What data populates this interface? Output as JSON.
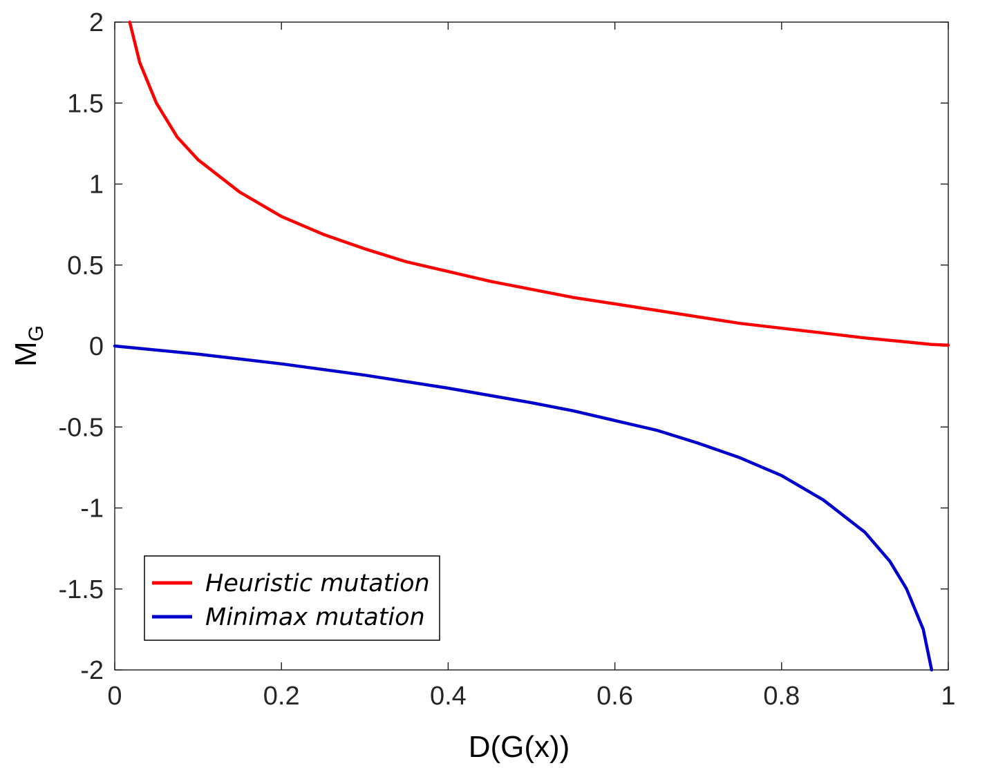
{
  "chart_data": {
    "type": "line",
    "title": "",
    "xlabel": "D(G(x))",
    "ylabel_main": "M",
    "ylabel_sub": "G",
    "xlim": [
      0,
      1
    ],
    "ylim": [
      -2,
      2
    ],
    "xticks": [
      0,
      0.2,
      0.4,
      0.6,
      0.8,
      1
    ],
    "xtick_labels": [
      "0",
      "0.2",
      "0.4",
      "0.6",
      "0.8",
      "1"
    ],
    "yticks": [
      2,
      1.5,
      1,
      0.5,
      0,
      -0.5,
      -1,
      -1.5,
      -2
    ],
    "ytick_labels": [
      "2",
      "1.5",
      "1",
      "0.5",
      "0",
      "-0.5",
      "-1",
      "-1.5",
      "-2"
    ],
    "grid": false,
    "legend_position": "bottom-left",
    "series": [
      {
        "name": "Heuristic mutation",
        "color": "#ff0000",
        "x": [
          0.018,
          0.03,
          0.05,
          0.075,
          0.1,
          0.15,
          0.2,
          0.25,
          0.3,
          0.35,
          0.4,
          0.45,
          0.5,
          0.55,
          0.6,
          0.65,
          0.7,
          0.75,
          0.8,
          0.85,
          0.9,
          0.95,
          0.98,
          1.0
        ],
        "y": [
          2.0,
          1.75,
          1.5,
          1.29,
          1.15,
          0.95,
          0.8,
          0.69,
          0.6,
          0.52,
          0.46,
          0.4,
          0.35,
          0.3,
          0.26,
          0.22,
          0.18,
          0.14,
          0.11,
          0.08,
          0.05,
          0.025,
          0.01,
          0.005
        ]
      },
      {
        "name": "Minimax mutation",
        "color": "#0000cc",
        "x": [
          0.0,
          0.1,
          0.2,
          0.3,
          0.4,
          0.5,
          0.55,
          0.6,
          0.65,
          0.7,
          0.75,
          0.8,
          0.85,
          0.9,
          0.93,
          0.95,
          0.97,
          0.98
        ],
        "y": [
          0.0,
          -0.05,
          -0.11,
          -0.18,
          -0.26,
          -0.35,
          -0.4,
          -0.46,
          -0.52,
          -0.6,
          -0.69,
          -0.8,
          -0.95,
          -1.15,
          -1.33,
          -1.5,
          -1.75,
          -2.0
        ]
      }
    ]
  }
}
